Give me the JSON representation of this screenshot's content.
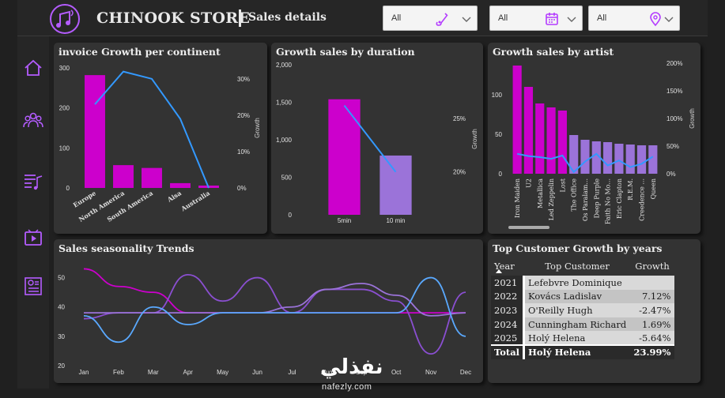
{
  "header": {
    "store_title": "CHINOOK STORE",
    "page_title": "Sales details",
    "slicers": [
      {
        "value": "All",
        "icon": "guitar-icon"
      },
      {
        "value": "All",
        "icon": "calendar-icon"
      },
      {
        "value": "All",
        "icon": "location-pin-icon"
      }
    ]
  },
  "nav": [
    "home-icon",
    "customers-icon",
    "playlist-icon",
    "video-icon",
    "report-icon"
  ],
  "colors": {
    "magenta": "#cc00cc",
    "lavender": "#9b73d9",
    "blue": "#3399ff",
    "panel": "#333333"
  },
  "panels": {
    "continent": {
      "title": "invoice Growth per continent",
      "ylabel_right": "Growth"
    },
    "duration": {
      "title": "Growth sales by duration",
      "ylabel_right": "Growth"
    },
    "artist": {
      "title": "Growth sales by artist",
      "ylabel_right": "Growth"
    },
    "seasonality": {
      "title": "Sales seasonality Trends"
    },
    "customers": {
      "title": "Top Customer Growth by years",
      "headers": {
        "year": "Year",
        "customer": "Top Customer",
        "growth": "Growth"
      },
      "rows": [
        {
          "year": "2021",
          "customer": "Lefebvre Dominique",
          "growth": ""
        },
        {
          "year": "2022",
          "customer": "Kovács Ladislav",
          "growth": "7.12%"
        },
        {
          "year": "2023",
          "customer": "O'Reilly Hugh",
          "growth": "-2.47%"
        },
        {
          "year": "2024",
          "customer": "Cunningham Richard",
          "growth": "1.69%"
        },
        {
          "year": "2025",
          "customer": "Holý Helena",
          "growth": "-5.64%"
        }
      ],
      "total": {
        "label": "Total",
        "customer": "Holý Helena",
        "growth": "23.99%"
      }
    }
  },
  "watermark": {
    "arabic": "نفذلي",
    "latin": "nafezly.com"
  },
  "chart_data": [
    {
      "type": "bar",
      "title": "invoice Growth per continent",
      "categories": [
        "Europe",
        "North America",
        "South America",
        "Aisa",
        "Australia"
      ],
      "values": [
        282,
        57,
        50,
        12,
        6
      ],
      "ylim": [
        0,
        300
      ],
      "yticks": [
        0,
        100,
        200,
        300
      ],
      "line": {
        "name": "Growth",
        "values": [
          0.23,
          0.32,
          0.3,
          0.19,
          0.0
        ],
        "ylim": [
          0,
          0.33
        ],
        "yticks": [
          "0%",
          "10%",
          "20%",
          "30%"
        ]
      }
    },
    {
      "type": "bar",
      "title": "Growth sales by duration",
      "categories": [
        "5min",
        "10 min"
      ],
      "values": [
        1540,
        790
      ],
      "ylim": [
        0,
        2000
      ],
      "yticks": [
        "0",
        "500",
        "1,000",
        "1,500",
        "2,000"
      ],
      "line": {
        "name": "Growth",
        "values": [
          0.262,
          0.2
        ],
        "ylim": [
          0.16,
          0.3
        ],
        "yticks": [
          "20%",
          "25%"
        ]
      }
    },
    {
      "type": "bar",
      "title": "Growth sales by artist",
      "categories": [
        "Iron Maiden",
        "U2",
        "Metallica",
        "Led Zeppelin",
        "Lost",
        "The Office",
        "Os Paralam...",
        "Deep Purple",
        "Faith No Mo...",
        "Eric Clapton",
        "R.E.M.",
        "Creedence ...",
        "Queen"
      ],
      "values": [
        137,
        110,
        89,
        84,
        80,
        49,
        43,
        41,
        40,
        38,
        37,
        36,
        36
      ],
      "ylim": [
        0,
        140
      ],
      "yticks": [
        0,
        50,
        100
      ],
      "line": {
        "name": "Growth",
        "values": [
          0.36,
          0.32,
          0.3,
          0.27,
          0.33,
          0.03,
          0.22,
          0.36,
          0.15,
          0.24,
          0.12,
          0.18,
          0.31
        ],
        "ylim": [
          0,
          2.0
        ],
        "yticks": [
          "0%",
          "50%",
          "100%",
          "150%",
          "200%"
        ]
      }
    },
    {
      "type": "line",
      "title": "Sales seasonality Trends",
      "categories": [
        "Jan",
        "Feb",
        "Mar",
        "Apr",
        "May",
        "Jun",
        "Jul",
        "Aug",
        "Sep",
        "Oct",
        "Nov",
        "Dec"
      ],
      "ylim": [
        20,
        55
      ],
      "yticks": [
        20,
        30,
        40,
        50
      ],
      "series": [
        {
          "values": [
            53,
            47,
            45,
            38,
            38,
            38,
            38,
            38,
            38,
            38,
            38,
            38
          ]
        },
        {
          "values": [
            36,
            38,
            38,
            51,
            42,
            50,
            38,
            46,
            46,
            42,
            24,
            45
          ]
        },
        {
          "values": [
            38,
            38,
            38,
            38,
            38,
            38,
            40,
            46,
            48,
            44,
            37,
            38
          ]
        },
        {
          "values": [
            37,
            28,
            40,
            34,
            38,
            38,
            38,
            38,
            38,
            38,
            50,
            30
          ]
        }
      ]
    }
  ]
}
